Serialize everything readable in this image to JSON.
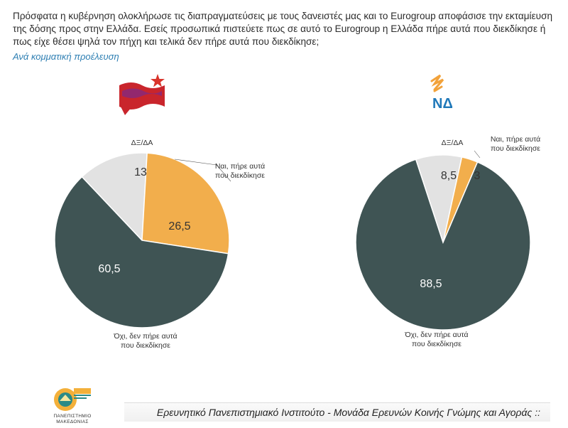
{
  "question": "Πρόσφατα η κυβέρνηση ολοκλήρωσε τις διαπραγματεύσεις με τους δανειστές μας και το Eurogroup αποφάσισε την εκταμίευση της δόσης προς στην Ελλάδα. Εσείς προσωπικά πιστεύετε πως σε αυτό το Eurogroup η Ελλάδα πήρε αυτά που διεκδίκησε ή πως είχε θέσει ψηλά τον πήχη και τελικά δεν πήρε αυτά που διεκδίκησε;",
  "subtitle": "Ανά κομματική προέλευση",
  "footer": "Ερευνητικό Πανεπιστημιακό Ινστιτούτο - Μονάδα Ερευνών Κοινής Γνώμης και Αγοράς ::",
  "logo": {
    "line1": "ΠΑΝΕΠΙΣΤΗΜΙΟ",
    "line2": "ΜΑΚΕΔΟΝΙΑΣ"
  },
  "party_logos": {
    "right": "ΝΔ"
  },
  "colors": {
    "yes": "#f2ae4c",
    "no": "#3f5454",
    "dk": "#e2e2e2"
  },
  "chart_data": [
    {
      "type": "pie",
      "categories": [
        "Ναι, πήρε αυτά που διεκδίκησε",
        "Όχι, δεν πήρε αυτά που διεκδίκησε",
        "ΔΞ/ΔΑ"
      ],
      "values": [
        26.5,
        60.5,
        13
      ],
      "value_labels": [
        "26,5",
        "60,5",
        "13"
      ],
      "labels": {
        "yes": [
          "Ναι, πήρε αυτά",
          "που διεκδίκησε"
        ],
        "no": [
          "Όχι, δεν πήρε αυτά",
          "που διεκδίκησε"
        ],
        "dk": [
          "ΔΞ/ΔΑ"
        ]
      }
    },
    {
      "type": "pie",
      "categories": [
        "Ναι, πήρε αυτά που διεκδίκησε",
        "Όχι, δεν πήρε αυτά που διεκδίκησε",
        "ΔΞ/ΔΑ"
      ],
      "values": [
        3,
        88.5,
        8.5
      ],
      "value_labels": [
        "3",
        "88,5",
        "8,5"
      ],
      "labels": {
        "yes": [
          "Ναι, πήρε αυτά",
          "που διεκδίκησε"
        ],
        "no": [
          "Όχι, δεν πήρε αυτά",
          "που διεκδίκησε"
        ],
        "dk": [
          "ΔΞ/ΔΑ"
        ]
      }
    }
  ]
}
